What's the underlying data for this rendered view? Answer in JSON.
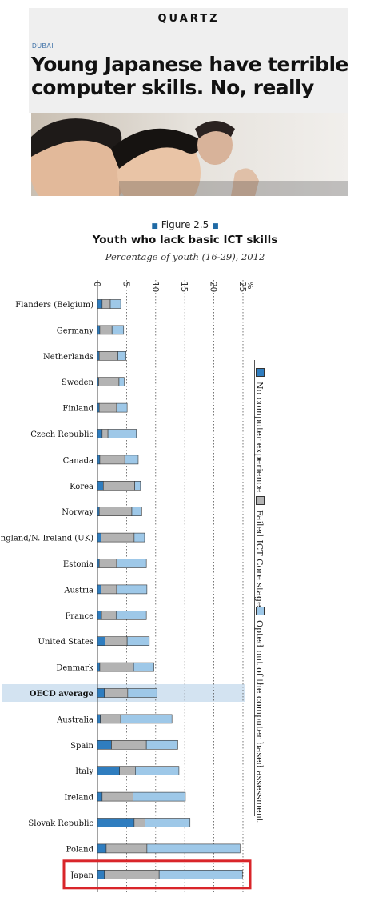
{
  "header": {
    "brand": "QUARTZ",
    "kicker": "DUBAI",
    "headline": "Young Japanese have terrible computer skills. No, really"
  },
  "figure": {
    "label": "Figure 2.5",
    "marker_color": "#1f6aa5"
  },
  "colors": {
    "no_experience": "#2f7dbf",
    "failed_core": "#b3b3b3",
    "opted_out": "#9ec8e8",
    "highlight_band": "#d3e3f1",
    "highlight_box": "#d9252a"
  },
  "chart_data": {
    "type": "bar",
    "orientation": "horizontal",
    "stacked": true,
    "title": "Youth who lack basic ICT skills",
    "subtitle": "Percentage of youth (16-29), 2012",
    "unit_label": "%",
    "xlim": [
      0,
      25
    ],
    "x_ticks": [
      "0",
      "5",
      "10",
      "15",
      "20",
      "25"
    ],
    "grid": "dotted vertical lines",
    "legend_position": "right, rotated vertical",
    "categories": [
      "Flanders (Belgium)",
      "Germany",
      "Netherlands",
      "Sweden",
      "Finland",
      "Czech Republic",
      "Canada",
      "Korea",
      "Norway",
      "England/N. Ireland (UK)",
      "Estonia",
      "Austria",
      "France",
      "United States",
      "Denmark",
      "OECD average",
      "Australia",
      "Spain",
      "Italy",
      "Ireland",
      "Slovak Republic",
      "Poland",
      "Japan"
    ],
    "highlighted_band": "OECD average",
    "highlighted_box": "Japan",
    "series": [
      {
        "name": "No computer experience",
        "values": [
          0.8,
          0.4,
          0.3,
          0.2,
          0.3,
          0.8,
          0.4,
          1.0,
          0.3,
          0.6,
          0.3,
          0.6,
          0.7,
          1.3,
          0.4,
          1.2,
          0.5,
          2.4,
          3.8,
          0.8,
          6.3,
          1.5,
          1.2
        ]
      },
      {
        "name": "Failed ICT Core stage",
        "values": [
          1.4,
          2.1,
          3.2,
          3.5,
          3.0,
          1.0,
          4.3,
          5.4,
          5.6,
          5.7,
          3.0,
          2.7,
          2.5,
          3.8,
          5.8,
          4.0,
          3.5,
          6.0,
          2.7,
          5.3,
          1.9,
          7.0,
          9.4
        ]
      },
      {
        "name": "Opted out of the computer based assessment",
        "values": [
          1.8,
          2.0,
          1.4,
          0.9,
          1.8,
          4.9,
          2.3,
          1.0,
          1.7,
          1.8,
          5.1,
          5.2,
          5.2,
          3.8,
          3.5,
          5.0,
          8.8,
          5.4,
          7.5,
          9.0,
          7.7,
          16.0,
          14.3
        ]
      }
    ]
  }
}
